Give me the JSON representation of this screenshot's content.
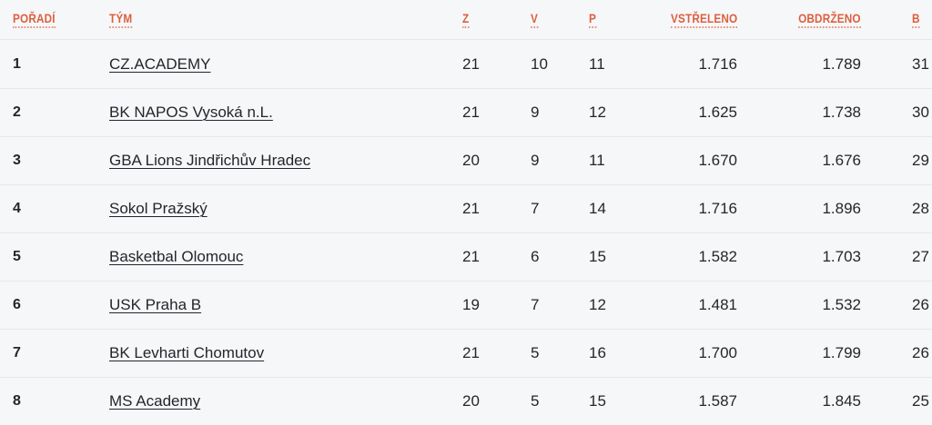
{
  "colors": {
    "accent": "#dd5f3e",
    "background": "#f6f7f9",
    "divider": "#e6e8ec",
    "text": "#22262b"
  },
  "table": {
    "columns": [
      {
        "key": "rank",
        "label": "POŘADÍ"
      },
      {
        "key": "team",
        "label": "TÝM"
      },
      {
        "key": "z",
        "label": "Z"
      },
      {
        "key": "v",
        "label": "V"
      },
      {
        "key": "p",
        "label": "P"
      },
      {
        "key": "scored",
        "label": "VSTŘELENO"
      },
      {
        "key": "conceded",
        "label": "OBDRŽENO"
      },
      {
        "key": "b",
        "label": "B"
      }
    ],
    "rows": [
      {
        "rank": "1",
        "team": "CZ.ACADEMY",
        "z": "21",
        "v": "10",
        "p": "11",
        "scored": "1.716",
        "conceded": "1.789",
        "b": "31"
      },
      {
        "rank": "2",
        "team": "BK NAPOS Vysoká n.L.",
        "z": "21",
        "v": "9",
        "p": "12",
        "scored": "1.625",
        "conceded": "1.738",
        "b": "30"
      },
      {
        "rank": "3",
        "team": "GBA Lions Jindřichův Hradec",
        "z": "20",
        "v": "9",
        "p": "11",
        "scored": "1.670",
        "conceded": "1.676",
        "b": "29"
      },
      {
        "rank": "4",
        "team": "Sokol Pražský",
        "z": "21",
        "v": "7",
        "p": "14",
        "scored": "1.716",
        "conceded": "1.896",
        "b": "28"
      },
      {
        "rank": "5",
        "team": "Basketbal Olomouc",
        "z": "21",
        "v": "6",
        "p": "15",
        "scored": "1.582",
        "conceded": "1.703",
        "b": "27"
      },
      {
        "rank": "6",
        "team": "USK Praha B",
        "z": "19",
        "v": "7",
        "p": "12",
        "scored": "1.481",
        "conceded": "1.532",
        "b": "26"
      },
      {
        "rank": "7",
        "team": "BK Levharti Chomutov",
        "z": "21",
        "v": "5",
        "p": "16",
        "scored": "1.700",
        "conceded": "1.799",
        "b": "26"
      },
      {
        "rank": "8",
        "team": "MS Academy",
        "z": "20",
        "v": "5",
        "p": "15",
        "scored": "1.587",
        "conceded": "1.845",
        "b": "25"
      }
    ]
  }
}
